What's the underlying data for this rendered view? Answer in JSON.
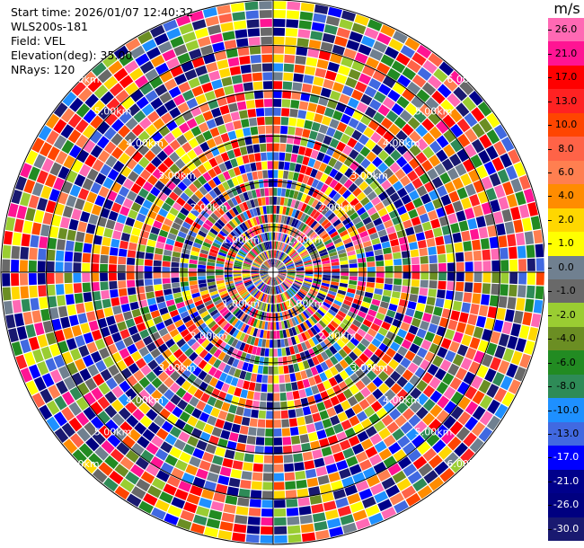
{
  "info": {
    "start_time": "Start time: 2026/01/07 12:40:32",
    "instrument": "WLS200s-181",
    "field": "Field: VEL",
    "elevation": "Elevation(deg): 35.00",
    "nrays": "NRays: 120"
  },
  "range_ring_labels": [
    "1.00km",
    "2.00km",
    "3.00km",
    "4.00km",
    "5.00km",
    "6.00km"
  ],
  "colorbar": {
    "unit": "m/s",
    "ticks": [
      "26.0",
      "21.0",
      "17.0",
      "13.0",
      "10.0",
      "8.0",
      "6.0",
      "4.0",
      "2.0",
      "1.0",
      "0.0",
      "-1.0",
      "-2.0",
      "-4.0",
      "-6.0",
      "-8.0",
      "-10.0",
      "-13.0",
      "-17.0",
      "-21.0",
      "-26.0",
      "-30.0"
    ],
    "colors": [
      "#ff69b4",
      "#ff1493",
      "#ff0000",
      "#ff2222",
      "#ff4500",
      "#ff6347",
      "#ff7f50",
      "#ff8c00",
      "#ffd700",
      "#ffff00",
      "#708090",
      "#696969",
      "#9acd32",
      "#6b8e23",
      "#228b22",
      "#2e8b57",
      "#1e90ff",
      "#4169e1",
      "#0000ff",
      "#00008b",
      "#000080",
      "#191970"
    ]
  }
}
